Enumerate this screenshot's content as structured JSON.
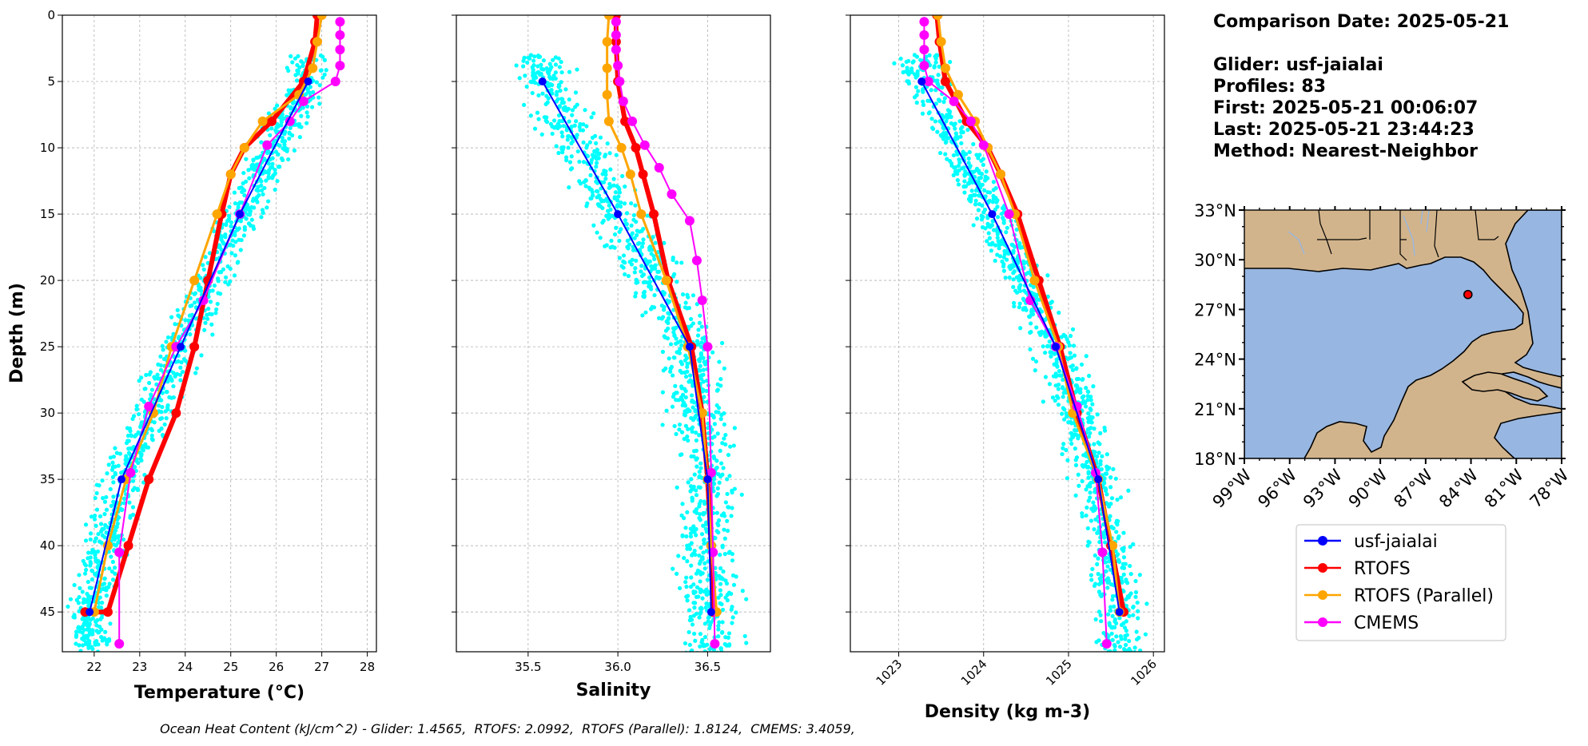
{
  "info": {
    "comparison_date": "Comparison Date: 2025-05-21",
    "glider": "Glider: usf-jaialai",
    "profiles": "Profiles: 83",
    "first": "First: 2025-05-21 00:06:07",
    "last": "Last: 2025-05-21 23:44:23",
    "method": "Method: Nearest-Neighbor"
  },
  "ohc": {
    "prefix": "Ocean Heat Content (kJ/cm^2) - Glider: 1.4565,  ",
    "rtofs": "RTOFS: 2.0992,  ",
    "rtofs_parallel": "RTOFS (Parallel): 1.8124,  ",
    "cmems": "CMEMS: 3.4059,"
  },
  "colors": {
    "glider": "#0000ff",
    "rtofs": "#ff0000",
    "rtofs_parallel": "#ffa500",
    "cmems": "#ff00ff",
    "scatter": "#00ffff",
    "ocean": "#97b6e1",
    "land": "#d2b48c"
  },
  "chart_data": [
    {
      "type": "line",
      "xlabel": "Temperature (°C)",
      "ylabel": "Depth (m)",
      "xlim": [
        21.3,
        28.2
      ],
      "ylim": [
        48,
        0
      ],
      "x_ticks": [
        22,
        23,
        24,
        25,
        26,
        27,
        28
      ],
      "y_ticks": [
        0,
        5,
        10,
        15,
        20,
        25,
        30,
        35,
        40,
        45
      ],
      "grid": true,
      "scatter_spread": 0.28,
      "series": [
        {
          "name": "usf-jaialai",
          "color": "#0000ff",
          "width": 2,
          "marker": 5,
          "x": [
            26.7,
            25.2,
            23.9,
            22.6,
            21.9
          ],
          "y": [
            5,
            15,
            25,
            35,
            45
          ]
        },
        {
          "name": "RTOFS",
          "color": "#ff0000",
          "width": 6,
          "marker": 6,
          "x": [
            26.9,
            26.85,
            26.6,
            25.9,
            25.3,
            25.0,
            24.8,
            24.5,
            24.2,
            23.8,
            23.2,
            22.75,
            22.3,
            21.8
          ],
          "y": [
            0,
            2,
            5,
            8,
            10,
            12,
            15,
            20,
            25,
            30,
            35,
            40,
            45,
            45
          ]
        },
        {
          "name": "RTOFS (Parallel)",
          "color": "#ffa500",
          "width": 3,
          "marker": 6,
          "x": [
            27.0,
            26.9,
            26.8,
            26.5,
            25.7,
            25.3,
            25.0,
            24.7,
            24.2,
            23.7,
            23.3,
            22.7,
            22.3,
            22.0
          ],
          "y": [
            0,
            2,
            4,
            6,
            8,
            10,
            12,
            15,
            20,
            25,
            30,
            35,
            40,
            45
          ]
        },
        {
          "name": "CMEMS",
          "color": "#ff00ff",
          "width": 2,
          "marker": 6,
          "x": [
            27.4,
            27.4,
            27.4,
            27.4,
            27.3,
            26.6,
            26.3,
            25.8,
            25.2,
            24.4,
            23.8,
            23.2,
            22.8,
            22.55,
            22.55
          ],
          "y": [
            0.5,
            1.5,
            2.6,
            3.8,
            5,
            6.5,
            8,
            9.8,
            15,
            21.5,
            25,
            29.5,
            34.5,
            40.5,
            47.4
          ]
        }
      ]
    },
    {
      "type": "line",
      "xlabel": "Salinity",
      "ylabel": "",
      "xlim": [
        35.1,
        36.85
      ],
      "ylim": [
        48,
        0
      ],
      "x_ticks": [
        35.5,
        36.0,
        36.5
      ],
      "y_ticks": [
        0,
        5,
        10,
        15,
        20,
        25,
        30,
        35,
        40,
        45
      ],
      "grid": true,
      "scatter_spread": 0.1,
      "series": [
        {
          "name": "usf-jaialai",
          "color": "#0000ff",
          "width": 2,
          "marker": 5,
          "x": [
            35.58,
            36.0,
            36.4,
            36.5,
            36.52
          ],
          "y": [
            5,
            15,
            25,
            35,
            45
          ]
        },
        {
          "name": "RTOFS",
          "color": "#ff0000",
          "width": 6,
          "marker": 6,
          "x": [
            35.99,
            35.99,
            36.0,
            36.04,
            36.1,
            36.14,
            36.2,
            36.28,
            36.41,
            36.47,
            36.5,
            36.52,
            36.53
          ],
          "y": [
            0,
            2,
            5,
            8,
            10,
            12,
            15,
            20,
            25,
            30,
            35,
            40,
            45
          ]
        },
        {
          "name": "RTOFS (Parallel)",
          "color": "#ffa500",
          "width": 3,
          "marker": 6,
          "x": [
            35.95,
            35.94,
            35.94,
            35.94,
            35.95,
            36.02,
            36.07,
            36.13,
            36.27,
            36.39,
            36.47,
            36.5,
            36.52,
            36.55
          ],
          "y": [
            0,
            2,
            4,
            6,
            8,
            10,
            12,
            15,
            20,
            25,
            30,
            35,
            40,
            45
          ]
        },
        {
          "name": "CMEMS",
          "color": "#ff00ff",
          "width": 2,
          "marker": 6,
          "x": [
            35.99,
            35.99,
            35.99,
            36.0,
            36.01,
            36.03,
            36.08,
            36.15,
            36.23,
            36.3,
            36.4,
            36.44,
            36.47,
            36.5,
            36.52,
            36.53,
            36.54
          ],
          "y": [
            0.5,
            1.5,
            2.6,
            3.8,
            5,
            6.5,
            8,
            9.8,
            11.5,
            13.5,
            15.5,
            18.5,
            21.5,
            25,
            34.5,
            40.5,
            47.4
          ]
        }
      ]
    },
    {
      "type": "line",
      "xlabel": "Density (kg m-3)",
      "ylabel": "",
      "xlim": [
        1022.43,
        1026.13
      ],
      "ylim": [
        48,
        0
      ],
      "x_ticks": [
        1023,
        1024,
        1025,
        1026
      ],
      "y_ticks": [
        0,
        5,
        10,
        15,
        20,
        25,
        30,
        35,
        40,
        45
      ],
      "grid": true,
      "scatter_spread": 0.16,
      "series": [
        {
          "name": "usf-jaialai",
          "color": "#0000ff",
          "width": 2,
          "marker": 5,
          "x": [
            1023.27,
            1024.1,
            1024.85,
            1025.35,
            1025.6
          ],
          "y": [
            5,
            15,
            25,
            35,
            45
          ]
        },
        {
          "name": "RTOFS",
          "color": "#ff0000",
          "width": 6,
          "marker": 6,
          "x": [
            1023.45,
            1023.48,
            1023.55,
            1023.8,
            1024.05,
            1024.2,
            1024.4,
            1024.65,
            1024.9,
            1025.1,
            1025.35,
            1025.5,
            1025.65
          ],
          "y": [
            0,
            2,
            5,
            8,
            10,
            12,
            15,
            20,
            25,
            30,
            35,
            40,
            45
          ]
        },
        {
          "name": "RTOFS (Parallel)",
          "color": "#ffa500",
          "width": 3,
          "marker": 6,
          "x": [
            1023.46,
            1023.5,
            1023.55,
            1023.7,
            1023.9,
            1024.05,
            1024.2,
            1024.37,
            1024.6,
            1024.88,
            1025.05,
            1025.35,
            1025.52,
            1025.6
          ],
          "y": [
            0,
            2,
            4,
            6,
            8,
            10,
            12,
            15,
            20,
            25,
            30,
            35,
            40,
            45
          ]
        },
        {
          "name": "CMEMS",
          "color": "#ff00ff",
          "width": 2,
          "marker": 6,
          "x": [
            1023.3,
            1023.3,
            1023.3,
            1023.3,
            1023.35,
            1023.65,
            1023.85,
            1024.0,
            1024.3,
            1024.55,
            1024.85,
            1025.1,
            1025.32,
            1025.4,
            1025.45
          ],
          "y": [
            0.5,
            1.5,
            2.6,
            3.8,
            5,
            6.5,
            8,
            9.8,
            15,
            21.5,
            25,
            29.5,
            34.5,
            40.5,
            47.4
          ]
        }
      ]
    },
    {
      "type": "map",
      "lon_range": [
        -99,
        -78
      ],
      "lat_range": [
        18,
        33
      ],
      "x_ticks": [
        "99°W",
        "96°W",
        "93°W",
        "90°W",
        "87°W",
        "84°W",
        "81°W",
        "78°W"
      ],
      "y_ticks": [
        "33°N",
        "30°N",
        "27°N",
        "24°N",
        "21°N",
        "18°N"
      ],
      "glider_position": {
        "lon": -84.2,
        "lat": 27.9
      }
    }
  ],
  "legend": [
    {
      "label": "usf-jaialai",
      "color": "#0000ff"
    },
    {
      "label": "RTOFS",
      "color": "#ff0000"
    },
    {
      "label": "RTOFS (Parallel)",
      "color": "#ffa500"
    },
    {
      "label": "CMEMS",
      "color": "#ff00ff"
    }
  ]
}
